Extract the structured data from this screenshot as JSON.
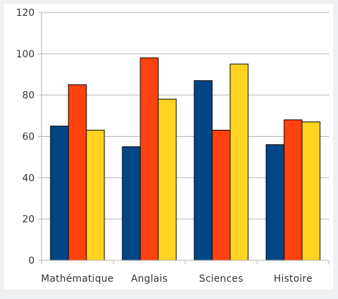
{
  "chart_data": {
    "type": "bar",
    "title": "",
    "xlabel": "",
    "ylabel": "",
    "categories": [
      "Mathématique",
      "Anglais",
      "Sciences",
      "Histoire"
    ],
    "series": [
      {
        "values": [
          65,
          55,
          87,
          56
        ],
        "color": "#004586"
      },
      {
        "values": [
          85,
          98,
          63,
          68
        ],
        "color": "#ff420e"
      },
      {
        "values": [
          63,
          78,
          95,
          67
        ],
        "color": "#ffd320"
      }
    ],
    "ylim": [
      0,
      120
    ],
    "yticks": [
      0,
      20,
      40,
      60,
      80,
      100,
      120
    ],
    "grid": true,
    "legend": "none"
  }
}
